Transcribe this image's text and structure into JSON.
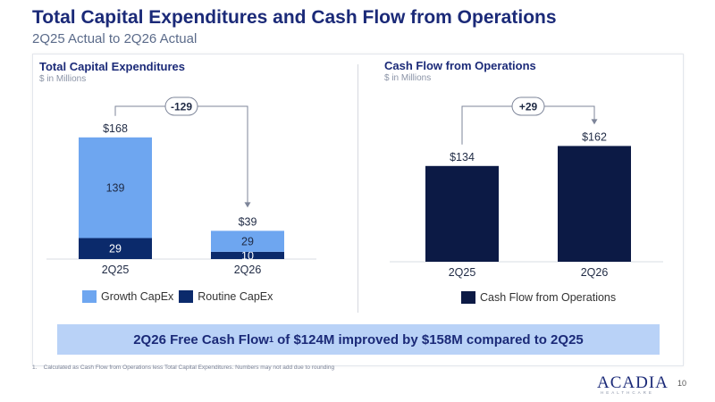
{
  "header": {
    "title": "Total Capital Expenditures and Cash Flow from Operations",
    "subtitle": "2Q25 Actual to 2Q26 Actual"
  },
  "chart_data": [
    {
      "type": "bar",
      "title": "Total Capital Expenditures",
      "subtitle": "$ in Millions",
      "categories": [
        "2Q25",
        "2Q26"
      ],
      "stacked": true,
      "series": [
        {
          "name": "Routine CapEx",
          "values": [
            29,
            10
          ],
          "color": "#0b2a6b"
        },
        {
          "name": "Growth CapEx",
          "values": [
            139,
            29
          ],
          "color": "#6ea6f0"
        }
      ],
      "totals": [
        "$168",
        "$39"
      ],
      "change_label": "-129",
      "ylim": [
        0,
        185
      ],
      "legend": "bottom"
    },
    {
      "type": "bar",
      "title": "Cash Flow from Operations",
      "subtitle": "$ in Millions",
      "categories": [
        "2Q25",
        "2Q26"
      ],
      "series": [
        {
          "name": "Cash Flow from Operations",
          "values": [
            134,
            162
          ],
          "color": "#0c1a45"
        }
      ],
      "totals": [
        "$134",
        "$162"
      ],
      "change_label": "+29",
      "ylim": [
        0,
        185
      ],
      "legend": "bottom"
    }
  ],
  "banner": {
    "text_a": "2Q26 Free Cash Flow",
    "sup": "1",
    "text_b": " of $124M improved by $158M compared to 2Q25"
  },
  "footnote": "1.    Calculated as Cash Flow from Operations less Total Capital Expenditures. Numbers may not add due to rounding",
  "logo": {
    "name": "ACADIA",
    "tagline": "HEALTHCARE"
  },
  "page_number": "10"
}
